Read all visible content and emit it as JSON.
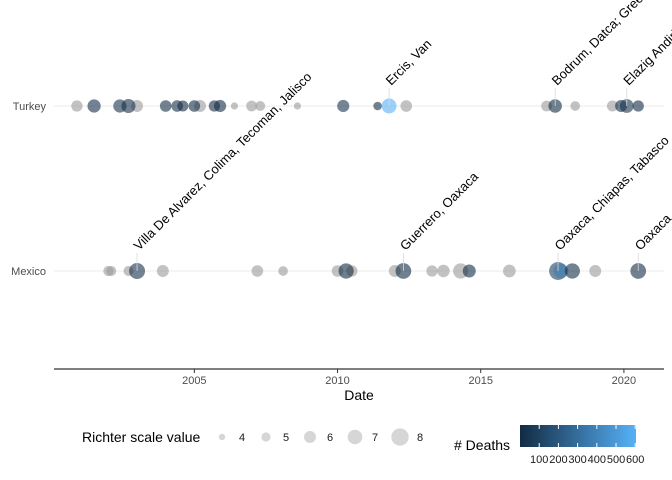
{
  "chart_data": {
    "type": "scatter",
    "title": "",
    "xlabel": "Date",
    "ylabel": "",
    "x_ticks": [
      "2005",
      "2010",
      "2015",
      "2020"
    ],
    "xlim": [
      2000.1,
      2021.4
    ],
    "categories": [
      "Mexico",
      "Turkey"
    ],
    "grid": "horizontal major lines only",
    "series": [
      {
        "category": "Turkey",
        "points": [
          {
            "x": 2000.9,
            "magnitude": 5.8,
            "deaths": 0
          },
          {
            "x": 2001.5,
            "magnitude": 6.5,
            "deaths": 20
          },
          {
            "x": 2002.4,
            "magnitude": 6.5,
            "deaths": 42
          },
          {
            "x": 2002.7,
            "magnitude": 6.8,
            "deaths": 20
          },
          {
            "x": 2003.0,
            "magnitude": 6.0,
            "deaths": 0
          },
          {
            "x": 2004.0,
            "magnitude": 5.9,
            "deaths": 10
          },
          {
            "x": 2004.4,
            "magnitude": 5.9,
            "deaths": 15
          },
          {
            "x": 2004.6,
            "magnitude": 5.7,
            "deaths": 2
          },
          {
            "x": 2005.0,
            "magnitude": 5.9,
            "deaths": 2
          },
          {
            "x": 2005.2,
            "magnitude": 6.0,
            "deaths": 0
          },
          {
            "x": 2005.7,
            "magnitude": 5.8,
            "deaths": 5
          },
          {
            "x": 2005.9,
            "magnitude": 6.1,
            "deaths": 3
          },
          {
            "x": 2006.4,
            "magnitude": 4.3,
            "deaths": 0
          },
          {
            "x": 2007.0,
            "magnitude": 5.6,
            "deaths": 0
          },
          {
            "x": 2007.3,
            "magnitude": 5.3,
            "deaths": 0
          },
          {
            "x": 2008.6,
            "magnitude": 4.3,
            "deaths": 0
          },
          {
            "x": 2010.2,
            "magnitude": 6.1,
            "deaths": 42
          },
          {
            "x": 2011.4,
            "magnitude": 4.8,
            "deaths": 8
          },
          {
            "x": 2011.8,
            "magnitude": 7.1,
            "deaths": 604
          },
          {
            "x": 2012.4,
            "magnitude": 5.9,
            "deaths": 0
          },
          {
            "x": 2017.3,
            "magnitude": 5.6,
            "deaths": 0
          },
          {
            "x": 2017.6,
            "magnitude": 6.6,
            "deaths": 2
          },
          {
            "x": 2018.3,
            "magnitude": 5.2,
            "deaths": 0
          },
          {
            "x": 2019.6,
            "magnitude": 5.7,
            "deaths": 0
          },
          {
            "x": 2019.9,
            "magnitude": 6.0,
            "deaths": 2
          },
          {
            "x": 2020.1,
            "magnitude": 6.7,
            "deaths": 41
          },
          {
            "x": 2020.5,
            "magnitude": 5.8,
            "deaths": 1
          }
        ]
      },
      {
        "category": "Mexico",
        "points": [
          {
            "x": 2002.0,
            "magnitude": 5.4,
            "deaths": 0
          },
          {
            "x": 2002.1,
            "magnitude": 5.3,
            "deaths": 0
          },
          {
            "x": 2002.7,
            "magnitude": 5.3,
            "deaths": 0
          },
          {
            "x": 2003.0,
            "magnitude": 7.5,
            "deaths": 29
          },
          {
            "x": 2003.9,
            "magnitude": 6.0,
            "deaths": 0
          },
          {
            "x": 2007.2,
            "magnitude": 5.9,
            "deaths": 0
          },
          {
            "x": 2008.1,
            "magnitude": 5.2,
            "deaths": 0
          },
          {
            "x": 2010.0,
            "magnitude": 5.9,
            "deaths": 0
          },
          {
            "x": 2010.3,
            "magnitude": 7.2,
            "deaths": 4
          },
          {
            "x": 2010.5,
            "magnitude": 5.8,
            "deaths": 0
          },
          {
            "x": 2012.0,
            "magnitude": 6.0,
            "deaths": 0
          },
          {
            "x": 2012.3,
            "magnitude": 7.4,
            "deaths": 2
          },
          {
            "x": 2013.3,
            "magnitude": 5.8,
            "deaths": 0
          },
          {
            "x": 2013.7,
            "magnitude": 6.2,
            "deaths": 0
          },
          {
            "x": 2014.3,
            "magnitude": 7.2,
            "deaths": 0
          },
          {
            "x": 2014.6,
            "magnitude": 6.4,
            "deaths": 2
          },
          {
            "x": 2016.0,
            "magnitude": 6.3,
            "deaths": 0
          },
          {
            "x": 2017.7,
            "magnitude": 8.2,
            "deaths": 98
          },
          {
            "x": 2017.8,
            "magnitude": 7.1,
            "deaths": 370
          },
          {
            "x": 2018.2,
            "magnitude": 7.2,
            "deaths": 14
          },
          {
            "x": 2019.0,
            "magnitude": 6.0,
            "deaths": 0
          },
          {
            "x": 2020.5,
            "magnitude": 7.4,
            "deaths": 10
          }
        ]
      }
    ],
    "annotations": [
      {
        "text": "Villa De Alvarez, Colima, Tecoman, Jalisco",
        "category": "Mexico",
        "x": 2003.0
      },
      {
        "text": "Guerrero, Oaxaca",
        "category": "Mexico",
        "x": 2012.3
      },
      {
        "text": "Oaxaca, Chiapas, Tabasco",
        "category": "Mexico",
        "x": 2017.7
      },
      {
        "text": "Oaxaca",
        "category": "Mexico",
        "x": 2020.5
      },
      {
        "text": "Ercis, Van",
        "category": "Turkey",
        "x": 2011.8
      },
      {
        "text": "Bodrum, Datca; Greece: Kos",
        "category": "Turkey",
        "x": 2017.6
      },
      {
        "text": "Elazig Andirin",
        "category": "Turkey",
        "x": 2020.1
      }
    ],
    "legend_size": {
      "title": "Richter scale value",
      "values": [
        "4",
        "5",
        "6",
        "7",
        "8"
      ],
      "placement": "bottom"
    },
    "legend_color": {
      "title": "# Deaths",
      "ticks": [
        "100",
        "200",
        "300",
        "400",
        "500",
        "600"
      ],
      "range": [
        0,
        604
      ],
      "low_color": "#132b43",
      "high_color": "#56b1f7",
      "missing_color": "#999999",
      "placement": "bottom"
    }
  }
}
